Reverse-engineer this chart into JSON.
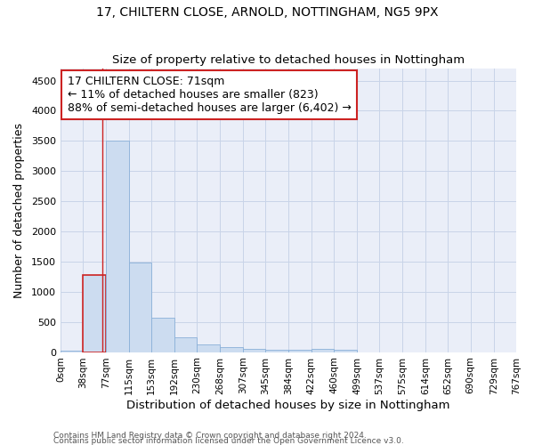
{
  "title1": "17, CHILTERN CLOSE, ARNOLD, NOTTINGHAM, NG5 9PX",
  "title2": "Size of property relative to detached houses in Nottingham",
  "xlabel": "Distribution of detached houses by size in Nottingham",
  "ylabel": "Number of detached properties",
  "footer1": "Contains HM Land Registry data © Crown copyright and database right 2024.",
  "footer2": "Contains public sector information licensed under the Open Government Licence v3.0.",
  "annotation_title": "17 CHILTERN CLOSE: 71sqm",
  "annotation_line1": "← 11% of detached houses are smaller (823)",
  "annotation_line2": "88% of semi-detached houses are larger (6,402) →",
  "property_size": 71,
  "bar_edges": [
    0,
    38,
    77,
    115,
    153,
    192,
    230,
    268,
    307,
    345,
    384,
    422,
    460,
    499,
    537,
    575,
    614,
    652,
    690,
    729,
    767
  ],
  "bar_heights": [
    30,
    1280,
    3500,
    1480,
    575,
    240,
    130,
    80,
    60,
    45,
    35,
    55,
    40,
    0,
    0,
    0,
    0,
    0,
    0,
    0
  ],
  "bar_color": "#ccdcf0",
  "bar_edge_color": "#8ab0d8",
  "highlight_bar_edge_color": "#cc2222",
  "annotation_box_edge_color": "#cc2222",
  "ylim": [
    0,
    4700
  ],
  "yticks": [
    0,
    500,
    1000,
    1500,
    2000,
    2500,
    3000,
    3500,
    4000,
    4500
  ],
  "grid_color": "#c8d4e8",
  "bg_color": "#eaeef8"
}
